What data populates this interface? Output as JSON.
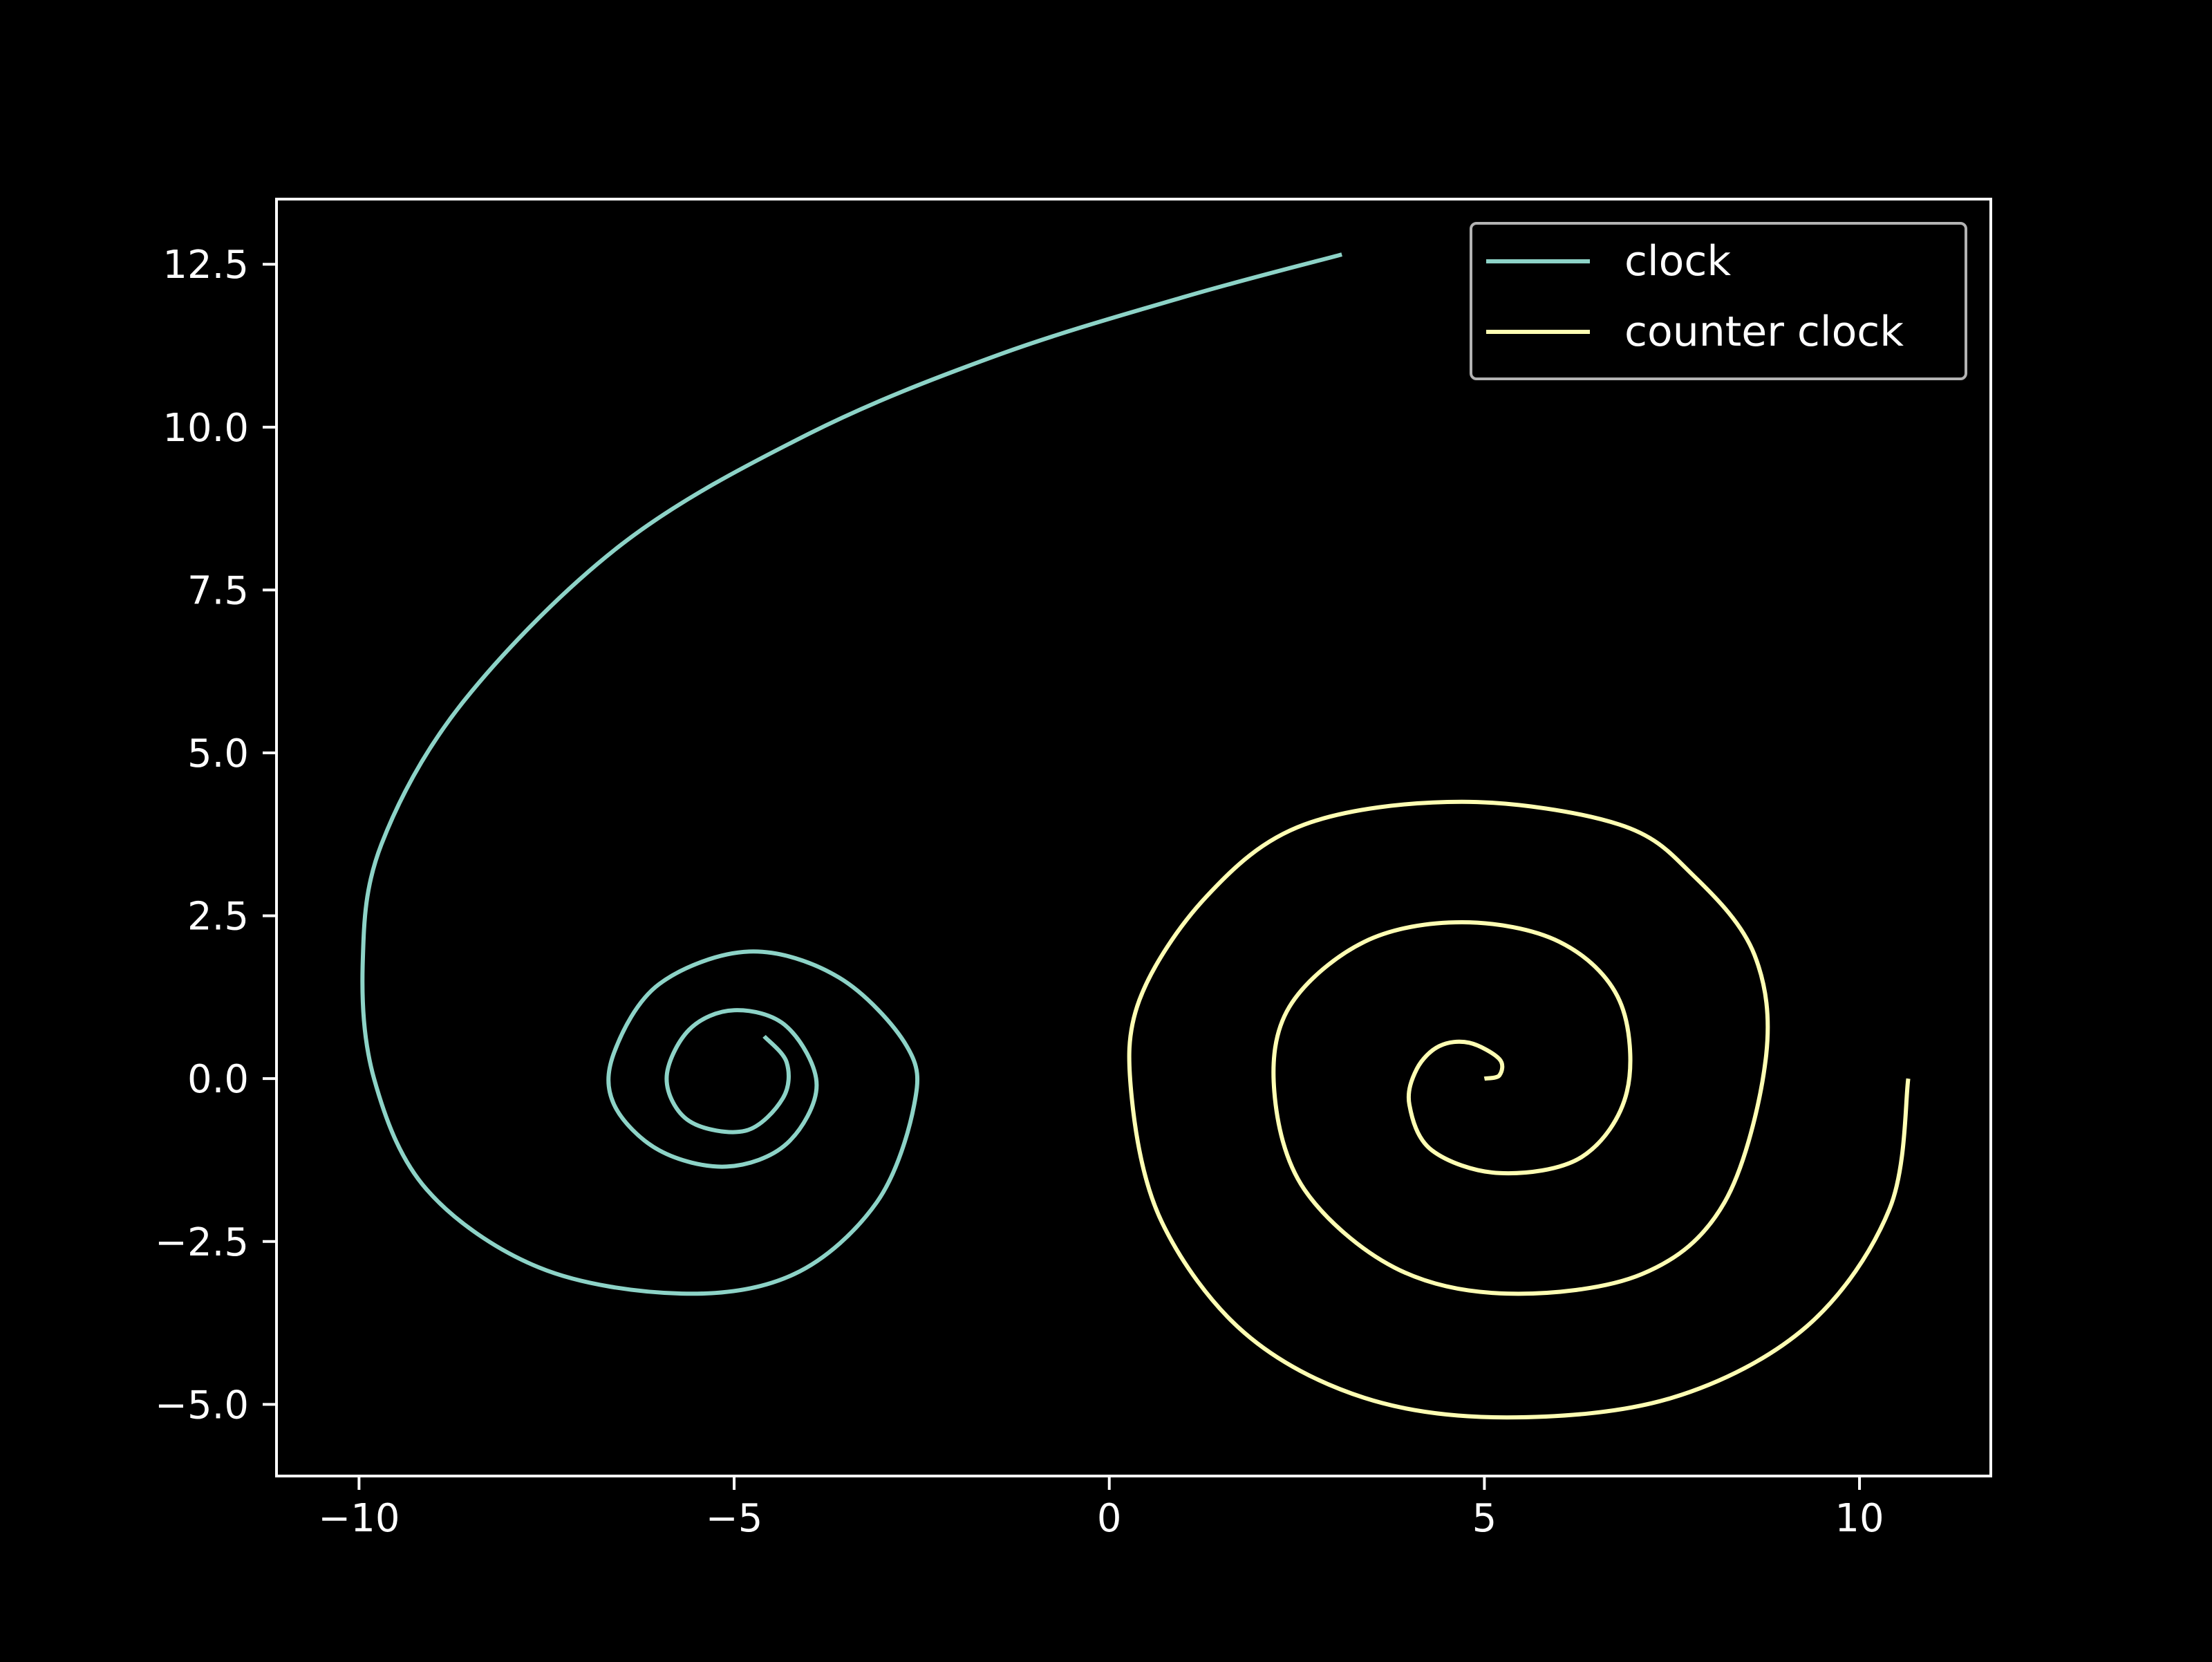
{
  "chart_data": {
    "type": "line",
    "title": "",
    "xlabel": "",
    "ylabel": "",
    "xlim": [
      -11.1,
      11.75
    ],
    "ylim": [
      -6.1,
      13.5
    ],
    "grid": false,
    "background": "#000000",
    "axis_color": "#ffffff",
    "x_ticks": [
      -10,
      -5,
      0,
      5,
      10
    ],
    "x_tick_labels": [
      "−10",
      "−5",
      "0",
      "5",
      "10"
    ],
    "y_ticks": [
      -5.0,
      -2.5,
      0.0,
      2.5,
      5.0,
      7.5,
      10.0,
      12.5
    ],
    "y_tick_labels": [
      "−5.0",
      "−2.5",
      "0.0",
      "2.5",
      "5.0",
      "7.5",
      "10.0",
      "12.5"
    ],
    "legend": {
      "position": "top-right",
      "entries": [
        "clock",
        "counter clock"
      ]
    },
    "series": [
      {
        "name": "clock",
        "color": "#8dd3c7",
        "points": [
          [
            -4.6,
            0.65
          ],
          [
            -4.3,
            0.25
          ],
          [
            -4.35,
            -0.3
          ],
          [
            -4.85,
            -0.8
          ],
          [
            -5.6,
            -0.65
          ],
          [
            -5.9,
            0.0
          ],
          [
            -5.6,
            0.75
          ],
          [
            -5.0,
            1.05
          ],
          [
            -4.3,
            0.8
          ],
          [
            -3.9,
            -0.1
          ],
          [
            -4.3,
            -1.0
          ],
          [
            -5.1,
            -1.35
          ],
          [
            -6.0,
            -1.1
          ],
          [
            -6.6,
            -0.4
          ],
          [
            -6.6,
            0.4
          ],
          [
            -6.0,
            1.45
          ],
          [
            -4.8,
            1.95
          ],
          [
            -3.6,
            1.55
          ],
          [
            -2.7,
            0.5
          ],
          [
            -2.6,
            -0.4
          ],
          [
            -3.1,
            -1.9
          ],
          [
            -4.2,
            -3.0
          ],
          [
            -5.7,
            -3.3
          ],
          [
            -7.6,
            -2.9
          ],
          [
            -9.1,
            -1.7
          ],
          [
            -9.8,
            0.0
          ],
          [
            -9.95,
            1.8
          ],
          [
            -9.7,
            3.6
          ],
          [
            -8.6,
            5.8
          ],
          [
            -6.5,
            8.2
          ],
          [
            -4.0,
            9.9
          ],
          [
            -1.5,
            11.1
          ],
          [
            1.0,
            12.0
          ],
          [
            3.1,
            12.65
          ]
        ]
      },
      {
        "name": "counter clock",
        "color": "#ffffb3",
        "points": [
          [
            5.0,
            0.0
          ],
          [
            5.2,
            0.05
          ],
          [
            5.2,
            0.3
          ],
          [
            4.8,
            0.55
          ],
          [
            4.4,
            0.5
          ],
          [
            4.1,
            0.15
          ],
          [
            4.0,
            -0.4
          ],
          [
            4.3,
            -1.1
          ],
          [
            5.2,
            -1.45
          ],
          [
            6.3,
            -1.2
          ],
          [
            6.9,
            -0.2
          ],
          [
            6.8,
            1.2
          ],
          [
            6.0,
            2.1
          ],
          [
            4.7,
            2.4
          ],
          [
            3.4,
            2.1
          ],
          [
            2.4,
            1.1
          ],
          [
            2.2,
            -0.2
          ],
          [
            2.6,
            -1.7
          ],
          [
            3.8,
            -2.9
          ],
          [
            5.3,
            -3.3
          ],
          [
            7.1,
            -3.0
          ],
          [
            8.2,
            -1.9
          ],
          [
            8.75,
            0.3
          ],
          [
            8.6,
            1.9
          ],
          [
            7.8,
            3.1
          ],
          [
            6.8,
            3.9
          ],
          [
            4.7,
            4.25
          ],
          [
            2.6,
            3.9
          ],
          [
            1.3,
            2.8
          ],
          [
            0.4,
            1.2
          ],
          [
            0.3,
            -0.3
          ],
          [
            0.7,
            -2.2
          ],
          [
            1.8,
            -3.9
          ],
          [
            3.4,
            -4.9
          ],
          [
            5.3,
            -5.2
          ],
          [
            7.5,
            -4.9
          ],
          [
            9.3,
            -3.8
          ],
          [
            10.4,
            -2.0
          ],
          [
            10.65,
            0.0
          ]
        ]
      }
    ]
  }
}
